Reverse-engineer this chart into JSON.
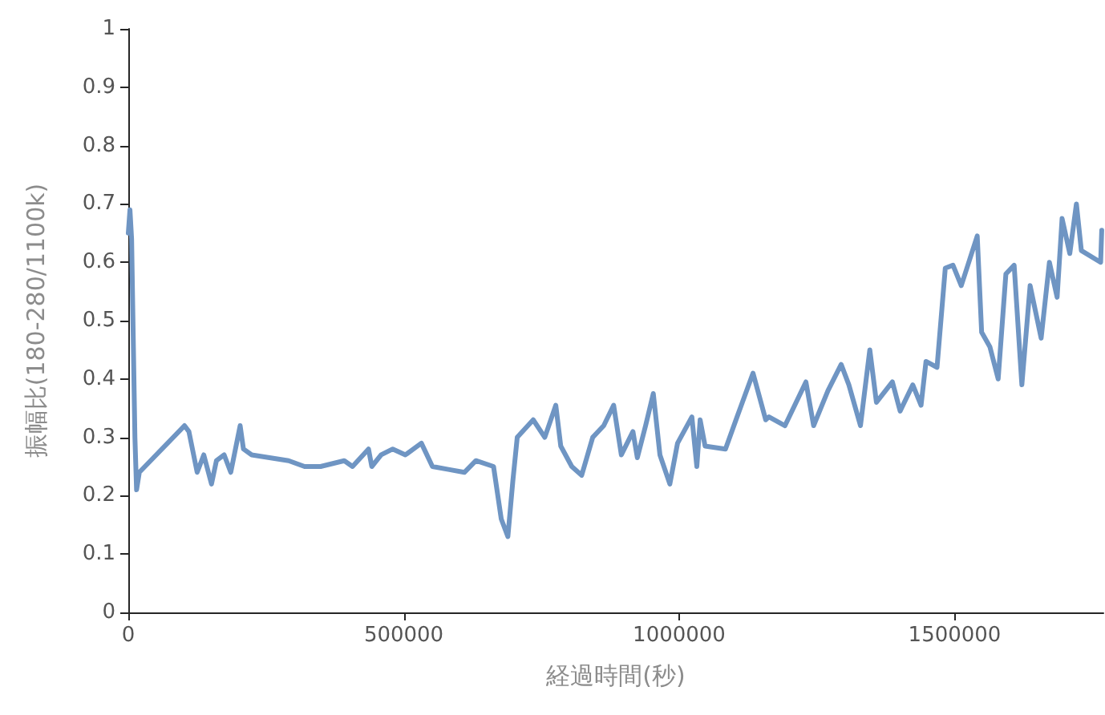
{
  "chart_data": {
    "type": "line",
    "xlabel": "経過時間(秒)",
    "ylabel": "振幅比(180-280/1100k)",
    "xlim": [
      0,
      1770000
    ],
    "xticks": [
      0,
      500000,
      1000000,
      1500000
    ],
    "ylim": [
      0,
      1
    ],
    "yticks": [
      0,
      0.1,
      0.2,
      0.3,
      0.4,
      0.5,
      0.6,
      0.7,
      0.8,
      0.9,
      1
    ],
    "grid": false,
    "marker": "none",
    "line_style": "solid",
    "series": [
      {
        "color": "#6f95c3",
        "x": [
          0,
          3000,
          6000,
          12000,
          15000,
          17000,
          20000,
          102000,
          110000,
          125000,
          137000,
          151000,
          160000,
          174000,
          186000,
          203000,
          209000,
          224000,
          291000,
          320000,
          349000,
          392000,
          407000,
          436000,
          442000,
          459000,
          480000,
          503000,
          532000,
          552000,
          581000,
          610000,
          631000,
          663000,
          677000,
          689000,
          698000,
          706000,
          735000,
          756000,
          776000,
          785000,
          805000,
          823000,
          843000,
          863000,
          881000,
          895000,
          916000,
          924000,
          939000,
          953000,
          965000,
          983000,
          997000,
          1023000,
          1032000,
          1038000,
          1047000,
          1084000,
          1105000,
          1134000,
          1157000,
          1163000,
          1192000,
          1230000,
          1244000,
          1270000,
          1294000,
          1308000,
          1329000,
          1346000,
          1358000,
          1387000,
          1401000,
          1424000,
          1439000,
          1448000,
          1468000,
          1483000,
          1497000,
          1512000,
          1541000,
          1549000,
          1564000,
          1579000,
          1593000,
          1608000,
          1622000,
          1637000,
          1657000,
          1672000,
          1686000,
          1695000,
          1709000,
          1721000,
          1730000,
          1765000,
          1767000
        ],
        "values": [
          0.65,
          0.69,
          0.64,
          0.3,
          0.21,
          0.21,
          0.24,
          0.32,
          0.31,
          0.24,
          0.27,
          0.22,
          0.26,
          0.27,
          0.24,
          0.32,
          0.28,
          0.27,
          0.26,
          0.25,
          0.25,
          0.26,
          0.25,
          0.28,
          0.25,
          0.27,
          0.28,
          0.27,
          0.29,
          0.25,
          0.245,
          0.24,
          0.26,
          0.25,
          0.16,
          0.13,
          0.225,
          0.3,
          0.33,
          0.3,
          0.355,
          0.285,
          0.25,
          0.235,
          0.3,
          0.32,
          0.355,
          0.27,
          0.31,
          0.265,
          0.32,
          0.375,
          0.27,
          0.22,
          0.29,
          0.335,
          0.25,
          0.33,
          0.285,
          0.28,
          0.335,
          0.41,
          0.33,
          0.335,
          0.32,
          0.395,
          0.32,
          0.38,
          0.425,
          0.39,
          0.32,
          0.45,
          0.36,
          0.395,
          0.345,
          0.39,
          0.355,
          0.43,
          0.42,
          0.59,
          0.595,
          0.56,
          0.645,
          0.48,
          0.455,
          0.4,
          0.58,
          0.595,
          0.39,
          0.56,
          0.47,
          0.6,
          0.54,
          0.675,
          0.615,
          0.7,
          0.62,
          0.6,
          0.655
        ]
      }
    ]
  }
}
